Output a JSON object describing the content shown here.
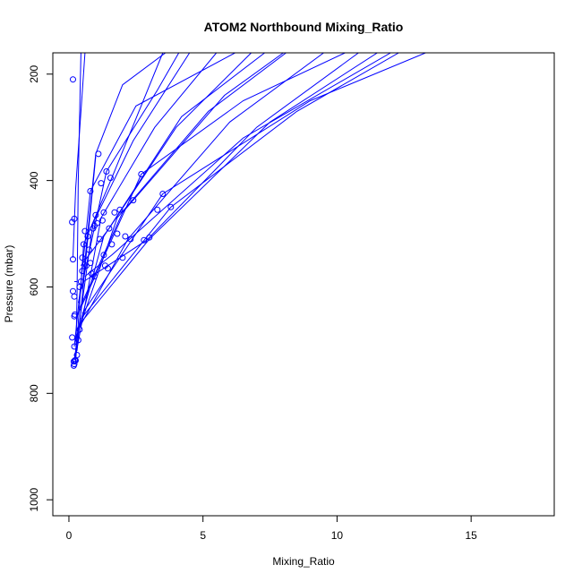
{
  "chart_data": {
    "type": "line",
    "title": "ATOM2 Northbound Mixing_Ratio",
    "xlabel": "Mixing_Ratio",
    "ylabel": "Pressure (mbar)",
    "xlim": [
      -0.6,
      18.1
    ],
    "ylim": [
      1030,
      160
    ],
    "y_reversed": true,
    "grid": false,
    "legend": "none",
    "line_color": "#0000ff",
    "marker": "open-circle",
    "x_ticks": [
      0,
      5,
      10,
      15
    ],
    "y_ticks": [
      200,
      400,
      600,
      800,
      1000
    ],
    "series": [
      {
        "points": [
          [
            0.25,
            745
          ],
          [
            0.3,
            620
          ],
          [
            0.35,
            400
          ],
          [
            0.45,
            160
          ]
        ]
      },
      {
        "points": [
          [
            0.25,
            740
          ],
          [
            0.55,
            520
          ],
          [
            1.6,
            395
          ],
          [
            3.5,
            160
          ]
        ]
      },
      {
        "points": [
          [
            0.2,
            738
          ],
          [
            0.9,
            480
          ],
          [
            2.4,
            325
          ],
          [
            4.5,
            160
          ]
        ]
      },
      {
        "points": [
          [
            0.25,
            730
          ],
          [
            1.2,
            470
          ],
          [
            3.2,
            300
          ],
          [
            5.5,
            160
          ]
        ]
      },
      {
        "points": [
          [
            0.2,
            712
          ],
          [
            0.8,
            420
          ],
          [
            2.5,
            260
          ],
          [
            6.2,
            160
          ]
        ]
      },
      {
        "points": [
          [
            0.25,
            700
          ],
          [
            1.3,
            505
          ],
          [
            4.2,
            280
          ],
          [
            7.3,
            160
          ]
        ]
      },
      {
        "points": [
          [
            0.3,
            690
          ],
          [
            1.8,
            470
          ],
          [
            5.2,
            270
          ],
          [
            8.1,
            160
          ]
        ]
      },
      {
        "points": [
          [
            0.35,
            680
          ],
          [
            2.2,
            510
          ],
          [
            6.0,
            290
          ],
          [
            9.5,
            160
          ]
        ]
      },
      {
        "points": [
          [
            0.4,
            670
          ],
          [
            3.0,
            510
          ],
          [
            7.5,
            290
          ],
          [
            11.5,
            160
          ]
        ]
      },
      {
        "points": [
          [
            0.45,
            660
          ],
          [
            3.8,
            450
          ],
          [
            8.5,
            270
          ],
          [
            12.3,
            160
          ]
        ]
      },
      {
        "points": [
          [
            0.5,
            650
          ],
          [
            3.5,
            425
          ],
          [
            9.0,
            250
          ],
          [
            13.3,
            160
          ]
        ]
      },
      {
        "points": [
          [
            0.3,
            655
          ],
          [
            2.7,
            388
          ],
          [
            6.5,
            250
          ],
          [
            10.3,
            160
          ]
        ]
      },
      {
        "points": [
          [
            0.4,
            640
          ],
          [
            2.0,
            460
          ],
          [
            5.8,
            240
          ],
          [
            8.0,
            160
          ]
        ]
      },
      {
        "points": [
          [
            0.35,
            630
          ],
          [
            1.4,
            383
          ],
          [
            3.3,
            230
          ],
          [
            4.1,
            160
          ]
        ]
      },
      {
        "points": [
          [
            0.5,
            600
          ],
          [
            1.0,
            350
          ],
          [
            2.0,
            220
          ],
          [
            3.6,
            160
          ]
        ]
      },
      {
        "points": [
          [
            0.55,
            590
          ],
          [
            2.9,
            512
          ],
          [
            7.0,
            300
          ],
          [
            10.8,
            160
          ]
        ]
      },
      {
        "points": [
          [
            0.6,
            580
          ],
          [
            1.6,
            540
          ],
          [
            6.5,
            320
          ],
          [
            12.0,
            160
          ]
        ]
      },
      {
        "points": [
          [
            0.45,
            560
          ],
          [
            1.5,
            490
          ],
          [
            4.0,
            300
          ],
          [
            6.8,
            160
          ]
        ]
      },
      {
        "points": [
          [
            0.2,
            590
          ],
          [
            0.3,
            590
          ]
        ]
      },
      {
        "points": [
          [
            0.15,
            545
          ],
          [
            0.25,
            415
          ],
          [
            0.6,
            160
          ]
        ]
      },
      {
        "points": [
          [
            0.3,
            720
          ],
          [
            1.0,
            355
          ]
        ]
      }
    ],
    "markers": [
      [
        0.15,
        210
      ],
      [
        0.12,
        478
      ],
      [
        0.2,
        472
      ],
      [
        0.15,
        548
      ],
      [
        0.15,
        608
      ],
      [
        0.2,
        618
      ],
      [
        0.2,
        655
      ],
      [
        0.22,
        652
      ],
      [
        0.12,
        695
      ],
      [
        0.2,
        712
      ],
      [
        0.22,
        738
      ],
      [
        0.18,
        740
      ],
      [
        0.2,
        745
      ],
      [
        0.18,
        748
      ],
      [
        0.25,
        738
      ],
      [
        0.3,
        728
      ],
      [
        0.35,
        700
      ],
      [
        0.4,
        680
      ],
      [
        0.4,
        600
      ],
      [
        0.45,
        590
      ],
      [
        0.5,
        570
      ],
      [
        0.5,
        545
      ],
      [
        0.55,
        520
      ],
      [
        0.6,
        495
      ],
      [
        0.7,
        505
      ],
      [
        0.75,
        530
      ],
      [
        0.8,
        555
      ],
      [
        0.85,
        575
      ],
      [
        0.9,
        490
      ],
      [
        0.95,
        485
      ],
      [
        0.8,
        420
      ],
      [
        1.0,
        465
      ],
      [
        1.05,
        480
      ],
      [
        1.1,
        350
      ],
      [
        1.15,
        510
      ],
      [
        1.2,
        405
      ],
      [
        1.25,
        475
      ],
      [
        1.3,
        540
      ],
      [
        1.35,
        560
      ],
      [
        1.4,
        383
      ],
      [
        1.45,
        565
      ],
      [
        1.5,
        490
      ],
      [
        1.55,
        395
      ],
      [
        1.6,
        520
      ],
      [
        1.7,
        460
      ],
      [
        1.8,
        500
      ],
      [
        1.9,
        455
      ],
      [
        2.0,
        545
      ],
      [
        2.1,
        505
      ],
      [
        2.3,
        510
      ],
      [
        2.4,
        437
      ],
      [
        2.7,
        388
      ],
      [
        2.8,
        512
      ],
      [
        3.0,
        507
      ],
      [
        3.3,
        455
      ],
      [
        3.5,
        425
      ],
      [
        3.8,
        450
      ],
      [
        1.3,
        460
      ],
      [
        0.65,
        560
      ],
      [
        0.95,
        580
      ]
    ]
  }
}
